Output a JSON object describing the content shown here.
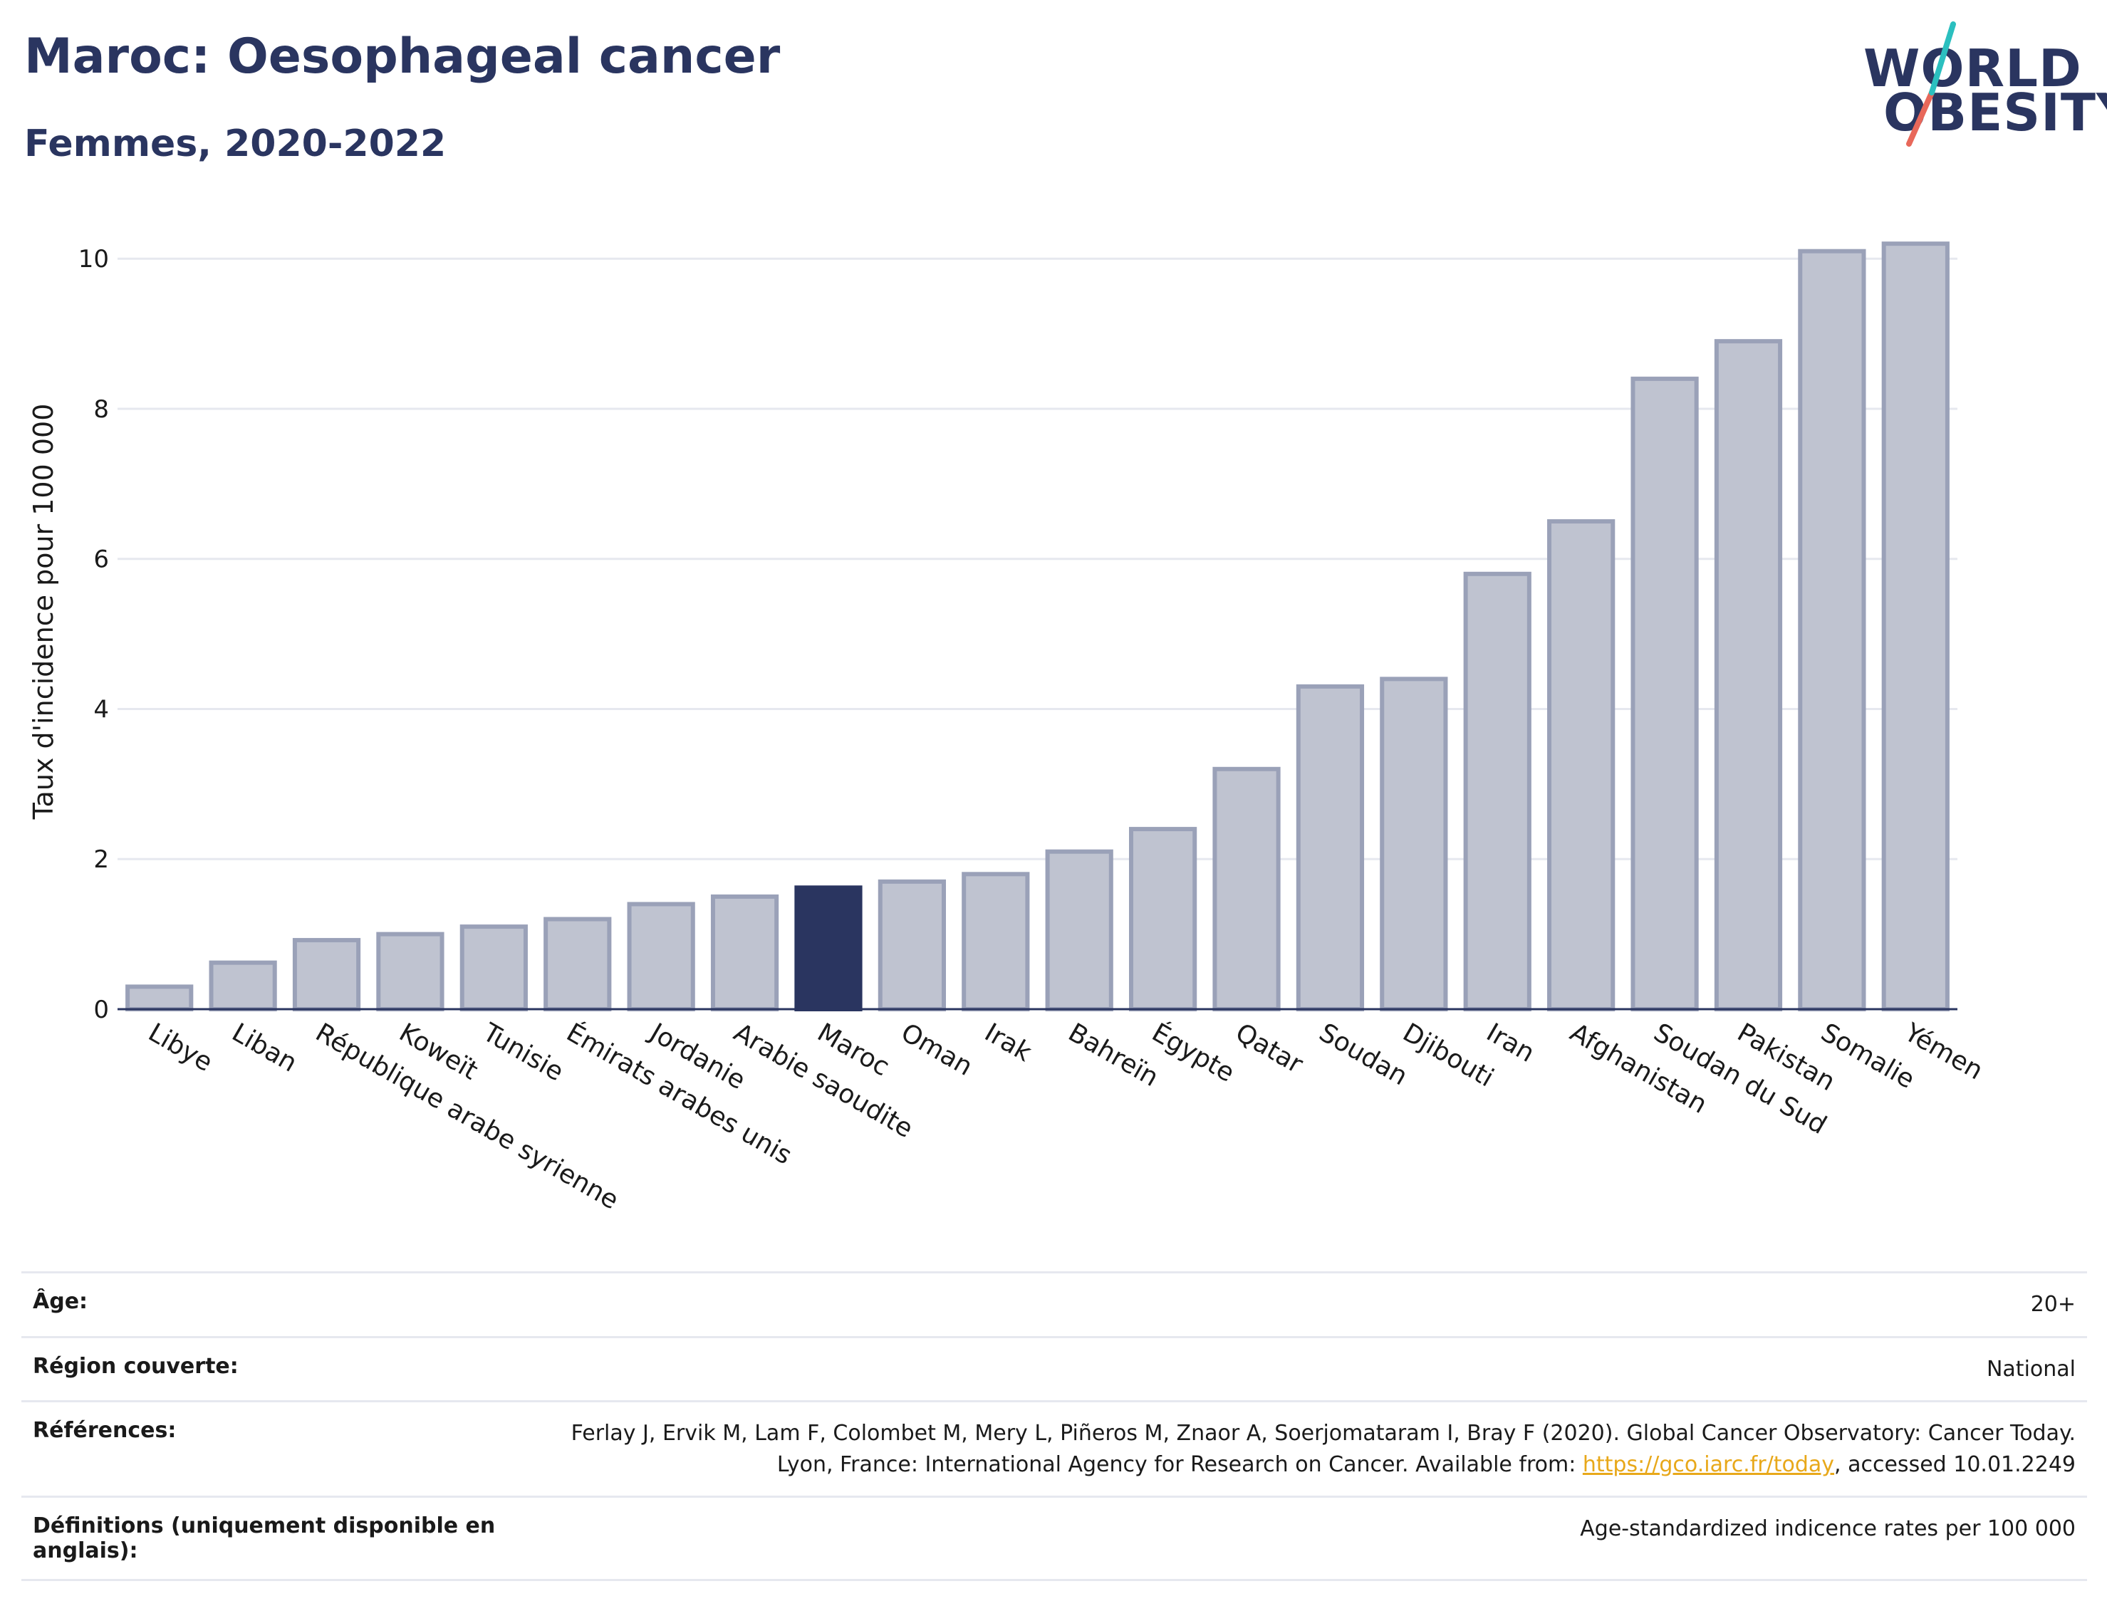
{
  "header": {
    "title": "Maroc: Oesophageal cancer",
    "subtitle": "Femmes, 2020-2022"
  },
  "logo": {
    "line1": "WORLD",
    "line2": "OBESITY",
    "accent_colors": [
      "#2bbfbf",
      "#e8685a"
    ]
  },
  "chart_data": {
    "type": "bar",
    "ylabel": "Taux d'incidence pour 100 000",
    "xlabel": "",
    "ylim": [
      0,
      10.6
    ],
    "yticks": [
      0,
      2,
      4,
      6,
      8,
      10
    ],
    "grid": true,
    "highlight": "Maroc",
    "colors": {
      "bar": "#bfc3d0",
      "bar_border": "#9aa1b8",
      "highlight": "#2a3560",
      "grid": "#e6e8ef",
      "axis": "#2a3560"
    },
    "categories": [
      "Libye",
      "Liban",
      "République arabe syrienne",
      "Koweït",
      "Tunisie",
      "Émirats arabes unis",
      "Jordanie",
      "Arabie saoudite",
      "Maroc",
      "Oman",
      "Irak",
      "Bahreïn",
      "Égypte",
      "Qatar",
      "Soudan",
      "Djibouti",
      "Iran",
      "Afghanistan",
      "Soudan du Sud",
      "Pakistan",
      "Somalie",
      "Yémen"
    ],
    "values": [
      0.3,
      0.62,
      0.92,
      1.0,
      1.1,
      1.2,
      1.4,
      1.5,
      1.62,
      1.7,
      1.8,
      2.1,
      2.4,
      3.2,
      4.3,
      4.4,
      5.8,
      6.5,
      8.4,
      8.9,
      10.1,
      10.2
    ]
  },
  "info_table": {
    "rows": [
      {
        "label": "Âge:",
        "value": "20+"
      },
      {
        "label": "Région couverte:",
        "value": "National"
      },
      {
        "label": "Références:",
        "value_before": "Ferlay J, Ervik M, Lam F, Colombet M, Mery L, Piñeros M, Znaor A, Soerjomataram I, Bray F (2020). Global Cancer Observatory: Cancer Today. Lyon, France: International Agency for Research on Cancer. Available from: ",
        "link": "https://gco.iarc.fr/today",
        "value_after": ", accessed 10.01.2249"
      },
      {
        "label": "Définitions (uniquement disponible en anglais):",
        "value": "Age-standardized indicence rates per 100 000"
      }
    ]
  }
}
